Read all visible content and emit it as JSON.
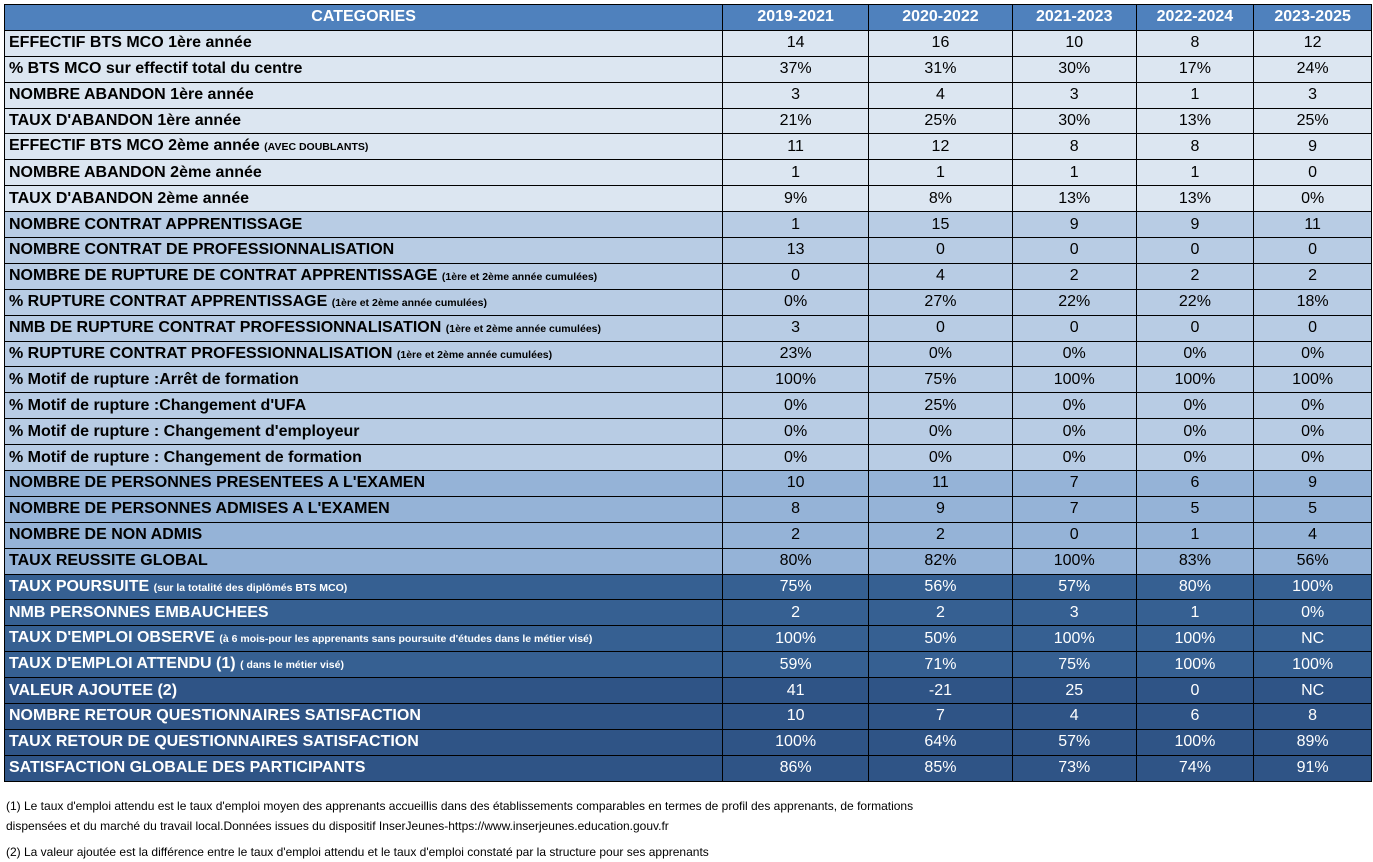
{
  "header": [
    "CATEGORIES",
    "2019-2021",
    "2020-2022",
    "2021-2023",
    "2022-2024",
    "2023-2025"
  ],
  "rows": [
    {
      "label": "EFFECTIF BTS MCO 1ère année",
      "note": "",
      "shade": "s0",
      "values": [
        "14",
        "16",
        "10",
        "8",
        "12"
      ]
    },
    {
      "label": "% BTS MCO sur effectif total du centre",
      "note": "",
      "shade": "s0",
      "values": [
        "37%",
        "31%",
        "30%",
        "17%",
        "24%"
      ]
    },
    {
      "label": "NOMBRE ABANDON 1ère année",
      "note": "",
      "shade": "s0",
      "values": [
        "3",
        "4",
        "3",
        "1",
        "3"
      ]
    },
    {
      "label": "TAUX D'ABANDON 1ère année",
      "note": "",
      "shade": "s0",
      "values": [
        "21%",
        "25%",
        "30%",
        "13%",
        "25%"
      ]
    },
    {
      "label": "EFFECTIF BTS MCO 2ème année",
      "note": "(AVEC DOUBLANTS)",
      "shade": "s0",
      "values": [
        "11",
        "12",
        "8",
        "8",
        "9"
      ]
    },
    {
      "label": "NOMBRE ABANDON 2ème année",
      "note": "",
      "shade": "s0",
      "values": [
        "1",
        "1",
        "1",
        "1",
        "0"
      ]
    },
    {
      "label": "TAUX D'ABANDON  2ème année",
      "note": "",
      "shade": "s0",
      "values": [
        "9%",
        "8%",
        "13%",
        "13%",
        "0%"
      ]
    },
    {
      "label": "NOMBRE CONTRAT APPRENTISSAGE",
      "note": "",
      "shade": "s1",
      "values": [
        "1",
        "15",
        "9",
        "9",
        "11"
      ]
    },
    {
      "label": "NOMBRE CONTRAT DE PROFESSIONNALISATION",
      "note": "",
      "shade": "s1",
      "values": [
        "13",
        "0",
        "0",
        "0",
        "0"
      ]
    },
    {
      "label": "NOMBRE DE RUPTURE DE CONTRAT APPRENTISSAGE",
      "note": "(1ère et 2ème année cumulées)",
      "shade": "s1",
      "values": [
        "0",
        "4",
        "2",
        "2",
        "2"
      ]
    },
    {
      "label": "% RUPTURE CONTRAT APPRENTISSAGE",
      "note": "(1ère et 2ème année cumulées)",
      "shade": "s1",
      "values": [
        "0%",
        "27%",
        "22%",
        "22%",
        "18%"
      ]
    },
    {
      "label": "NMB DE RUPTURE CONTRAT PROFESSIONNALISATION",
      "note": "(1ère et 2ème année cumulées)",
      "shade": "s1",
      "values": [
        "3",
        "0",
        "0",
        "0",
        "0"
      ]
    },
    {
      "label": "% RUPTURE CONTRAT PROFESSIONNALISATION",
      "note": "(1ère et 2ème année cumulées)",
      "shade": "s1",
      "values": [
        "23%",
        "0%",
        "0%",
        "0%",
        "0%"
      ]
    },
    {
      "label": "% Motif de rupture :Arrêt de formation",
      "note": "",
      "shade": "s1",
      "values": [
        "100%",
        "75%",
        "100%",
        "100%",
        "100%"
      ]
    },
    {
      "label": "% Motif de rupture :Changement d'UFA",
      "note": "",
      "shade": "s1",
      "values": [
        "0%",
        "25%",
        "0%",
        "0%",
        "0%"
      ]
    },
    {
      "label": "% Motif de rupture : Changement d'employeur",
      "note": "",
      "shade": "s1",
      "values": [
        "0%",
        "0%",
        "0%",
        "0%",
        "0%"
      ]
    },
    {
      "label": "% Motif de rupture : Changement de formation",
      "note": "",
      "shade": "s1",
      "values": [
        "0%",
        "0%",
        "0%",
        "0%",
        "0%"
      ]
    },
    {
      "label": "NOMBRE DE PERSONNES PRESENTEES A L'EXAMEN",
      "note": "",
      "shade": "s2",
      "values": [
        "10",
        "11",
        "7",
        "6",
        "9"
      ]
    },
    {
      "label": "NOMBRE DE PERSONNES ADMISES A L'EXAMEN",
      "note": "",
      "shade": "s2",
      "values": [
        "8",
        "9",
        "7",
        "5",
        "5"
      ]
    },
    {
      "label": "NOMBRE DE NON ADMIS",
      "note": "",
      "shade": "s2",
      "values": [
        "2",
        "2",
        "0",
        "1",
        "4"
      ]
    },
    {
      "label": "TAUX REUSSITE GLOBAL",
      "note": "",
      "shade": "s2",
      "values": [
        "80%",
        "82%",
        "100%",
        "83%",
        "56%"
      ]
    },
    {
      "label": "TAUX POURSUITE",
      "note": "(sur la totalité des diplômés BTS MCO)",
      "shade": "s3",
      "values": [
        "75%",
        "56%",
        "57%",
        "80%",
        "100%"
      ]
    },
    {
      "label": "NMB PERSONNES EMBAUCHEES",
      "note": "",
      "shade": "s3",
      "values": [
        "2",
        "2",
        "3",
        "1",
        "0%"
      ]
    },
    {
      "label": "TAUX D'EMPLOI OBSERVE",
      "note": "(à 6 mois-pour les apprenants sans poursuite d'études dans le métier visé)",
      "shade": "s3",
      "values": [
        "100%",
        "50%",
        "100%",
        "100%",
        "NC"
      ]
    },
    {
      "label": "TAUX D'EMPLOI ATTENDU (1)",
      "note": "( dans le métier visé)",
      "shade": "s3",
      "values": [
        "59%",
        "71%",
        "75%",
        "100%",
        "100%"
      ]
    },
    {
      "label": "VALEUR AJOUTEE (2)",
      "note": "",
      "shade": "s4",
      "values": [
        "41",
        "-21",
        "25",
        "0",
        "NC"
      ]
    },
    {
      "label": "NOMBRE RETOUR QUESTIONNAIRES SATISFACTION",
      "note": "",
      "shade": "s4",
      "values": [
        "10",
        "7",
        "4",
        "6",
        "8"
      ]
    },
    {
      "label": "TAUX RETOUR DE QUESTIONNAIRES SATISFACTION",
      "note": "",
      "shade": "s4",
      "values": [
        "100%",
        "64%",
        "57%",
        "100%",
        "89%"
      ]
    },
    {
      "label": "SATISFACTION GLOBALE DES PARTICIPANTS",
      "note": "",
      "shade": "s4",
      "values": [
        "86%",
        "85%",
        "73%",
        "74%",
        "91%"
      ]
    }
  ],
  "footnotes": {
    "note1_line1": "(1) Le taux d'emploi attendu est le taux d'emploi moyen des apprenants accueillis dans des établissements comparables en termes de profil des apprenants, de formations",
    "note1_line2": "dispensées et du marché du travail local.Données issues du dispositif InserJeunes-https://www.inserjeunes.education.gouv.fr",
    "note2": "(2) La valeur ajoutée est la différence entre le taux d'emploi attendu et le taux d'emploi constaté par la structure pour ses apprenants"
  },
  "colors": {
    "header": "#4f81bd",
    "s0": "#dce6f1",
    "s1": "#b8cce4",
    "s2": "#95b3d7",
    "s3": "#366092",
    "s4": "#2f5486"
  }
}
